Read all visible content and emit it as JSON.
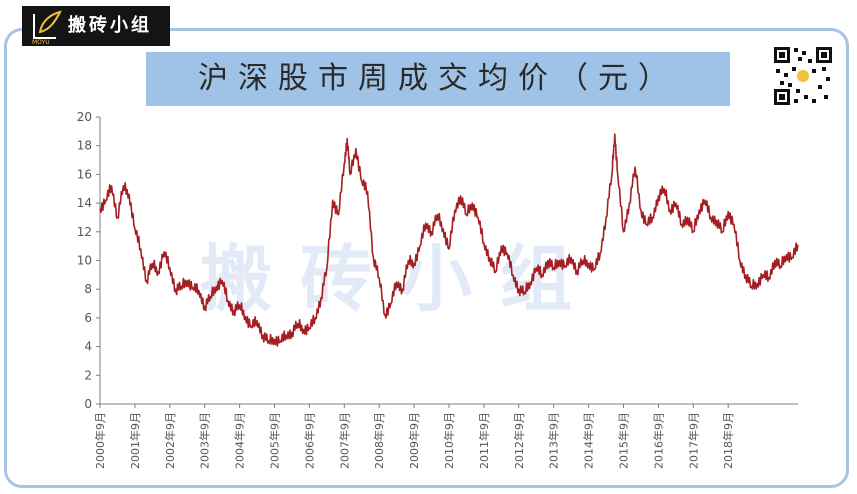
{
  "brand": {
    "name": "搬砖小组",
    "sub_text": "MOYU",
    "watermark": "搬砖小组",
    "colors": {
      "logo_bg": "#141414",
      "frame": "#a9c4e3",
      "title_band": "#9fc3e7"
    }
  },
  "chart_data": {
    "type": "line",
    "title": "沪深股市周成交均价（元）",
    "xlabel": "",
    "ylabel": "",
    "ylim": [
      0,
      20
    ],
    "yticks": [
      0,
      2,
      4,
      6,
      8,
      10,
      12,
      14,
      16,
      18,
      20
    ],
    "x_range": [
      "2000-09",
      "2019-09"
    ],
    "xtick_labels": [
      "2000年9月",
      "2001年9月",
      "2002年9月",
      "2003年9月",
      "2004年9月",
      "2005年9月",
      "2006年9月",
      "2007年9月",
      "2008年9月",
      "2009年9月",
      "2010年9月",
      "2011年9月",
      "2012年9月",
      "2013年9月",
      "2014年9月",
      "2015年9月",
      "2016年9月",
      "2017年9月",
      "2018年9月"
    ],
    "xtick_dates": [
      "2000-09",
      "2001-09",
      "2002-09",
      "2003-09",
      "2004-09",
      "2005-09",
      "2006-09",
      "2007-09",
      "2008-09",
      "2009-09",
      "2010-09",
      "2011-09",
      "2012-09",
      "2013-09",
      "2014-09",
      "2015-09",
      "2016-09",
      "2017-09",
      "2018-09"
    ],
    "grid": false,
    "legend": "none",
    "series": [
      {
        "color": "#a31f24",
        "points": [
          [
            "2000-09",
            13.6
          ],
          [
            "2000-11",
            14.2
          ],
          [
            "2001-01",
            15.2
          ],
          [
            "2001-03",
            13.0
          ],
          [
            "2001-05",
            15.2
          ],
          [
            "2001-07",
            14.6
          ],
          [
            "2001-09",
            12.2
          ],
          [
            "2001-11",
            10.8
          ],
          [
            "2002-01",
            8.6
          ],
          [
            "2002-03",
            9.8
          ],
          [
            "2002-05",
            9.2
          ],
          [
            "2002-07",
            10.6
          ],
          [
            "2002-09",
            9.5
          ],
          [
            "2002-11",
            8.0
          ],
          [
            "2003-01",
            8.2
          ],
          [
            "2003-03",
            8.6
          ],
          [
            "2003-05",
            8.1
          ],
          [
            "2003-07",
            7.9
          ],
          [
            "2003-09",
            6.8
          ],
          [
            "2003-11",
            7.5
          ],
          [
            "2004-01",
            8.2
          ],
          [
            "2004-03",
            8.6
          ],
          [
            "2004-05",
            7.2
          ],
          [
            "2004-07",
            6.5
          ],
          [
            "2004-09",
            6.9
          ],
          [
            "2004-11",
            6.1
          ],
          [
            "2005-01",
            5.4
          ],
          [
            "2005-03",
            5.8
          ],
          [
            "2005-05",
            4.8
          ],
          [
            "2005-07",
            4.4
          ],
          [
            "2005-09",
            4.5
          ],
          [
            "2005-11",
            4.4
          ],
          [
            "2006-01",
            4.8
          ],
          [
            "2006-03",
            5.0
          ],
          [
            "2006-05",
            5.6
          ],
          [
            "2006-07",
            5.2
          ],
          [
            "2006-09",
            5.3
          ],
          [
            "2006-11",
            6.0
          ],
          [
            "2007-01",
            7.4
          ],
          [
            "2007-03",
            9.5
          ],
          [
            "2007-05",
            14.2
          ],
          [
            "2007-07",
            13.2
          ],
          [
            "2007-09",
            16.8
          ],
          [
            "2007-10",
            18.5
          ],
          [
            "2007-11",
            16.0
          ],
          [
            "2008-01",
            17.8
          ],
          [
            "2008-03",
            15.5
          ],
          [
            "2008-05",
            14.8
          ],
          [
            "2008-07",
            10.2
          ],
          [
            "2008-09",
            8.8
          ],
          [
            "2008-11",
            6.2
          ],
          [
            "2009-01",
            7.0
          ],
          [
            "2009-03",
            8.5
          ],
          [
            "2009-05",
            8.0
          ],
          [
            "2009-07",
            10.0
          ],
          [
            "2009-09",
            9.8
          ],
          [
            "2009-11",
            11.0
          ],
          [
            "2010-01",
            12.6
          ],
          [
            "2010-03",
            12.0
          ],
          [
            "2010-05",
            13.2
          ],
          [
            "2010-07",
            12.2
          ],
          [
            "2010-09",
            10.8
          ],
          [
            "2010-11",
            13.5
          ],
          [
            "2011-01",
            14.5
          ],
          [
            "2011-03",
            13.2
          ],
          [
            "2011-05",
            14.0
          ],
          [
            "2011-07",
            13.0
          ],
          [
            "2011-09",
            11.2
          ],
          [
            "2011-11",
            10.2
          ],
          [
            "2012-01",
            9.2
          ],
          [
            "2012-03",
            11.0
          ],
          [
            "2012-05",
            10.5
          ],
          [
            "2012-07",
            9.0
          ],
          [
            "2012-09",
            8.0
          ],
          [
            "2012-11",
            7.8
          ],
          [
            "2013-01",
            8.5
          ],
          [
            "2013-03",
            9.5
          ],
          [
            "2013-05",
            9.0
          ],
          [
            "2013-07",
            10.0
          ],
          [
            "2013-09",
            9.5
          ],
          [
            "2013-11",
            10.0
          ],
          [
            "2014-01",
            9.6
          ],
          [
            "2014-03",
            10.2
          ],
          [
            "2014-05",
            9.3
          ],
          [
            "2014-07",
            10.0
          ],
          [
            "2014-09",
            9.8
          ],
          [
            "2014-11",
            9.4
          ],
          [
            "2015-01",
            10.5
          ],
          [
            "2015-03",
            13.0
          ],
          [
            "2015-05",
            16.0
          ],
          [
            "2015-06",
            18.8
          ],
          [
            "2015-07",
            16.0
          ],
          [
            "2015-09",
            12.0
          ],
          [
            "2015-11",
            14.0
          ],
          [
            "2016-01",
            16.5
          ],
          [
            "2016-03",
            13.5
          ],
          [
            "2016-05",
            12.5
          ],
          [
            "2016-07",
            13.0
          ],
          [
            "2016-09",
            14.5
          ],
          [
            "2016-11",
            15.0
          ],
          [
            "2017-01",
            13.5
          ],
          [
            "2017-03",
            14.0
          ],
          [
            "2017-05",
            12.5
          ],
          [
            "2017-07",
            13.0
          ],
          [
            "2017-09",
            12.0
          ],
          [
            "2017-11",
            13.5
          ],
          [
            "2018-01",
            14.2
          ],
          [
            "2018-03",
            13.0
          ],
          [
            "2018-05",
            12.8
          ],
          [
            "2018-07",
            12.0
          ],
          [
            "2018-09",
            13.4
          ],
          [
            "2018-11",
            12.5
          ],
          [
            "2019-01",
            10.0
          ],
          [
            "2019-03",
            9.0
          ],
          [
            "2019-05",
            8.2
          ],
          [
            "2019-07",
            8.4
          ],
          [
            "2019-09",
            9.0
          ],
          [
            "2019-11",
            8.8
          ],
          [
            "2020-01",
            10.0
          ],
          [
            "2020-03",
            9.6
          ],
          [
            "2020-05",
            10.4
          ],
          [
            "2020-07",
            10.2
          ],
          [
            "2020-09",
            11.1
          ]
        ]
      }
    ]
  }
}
